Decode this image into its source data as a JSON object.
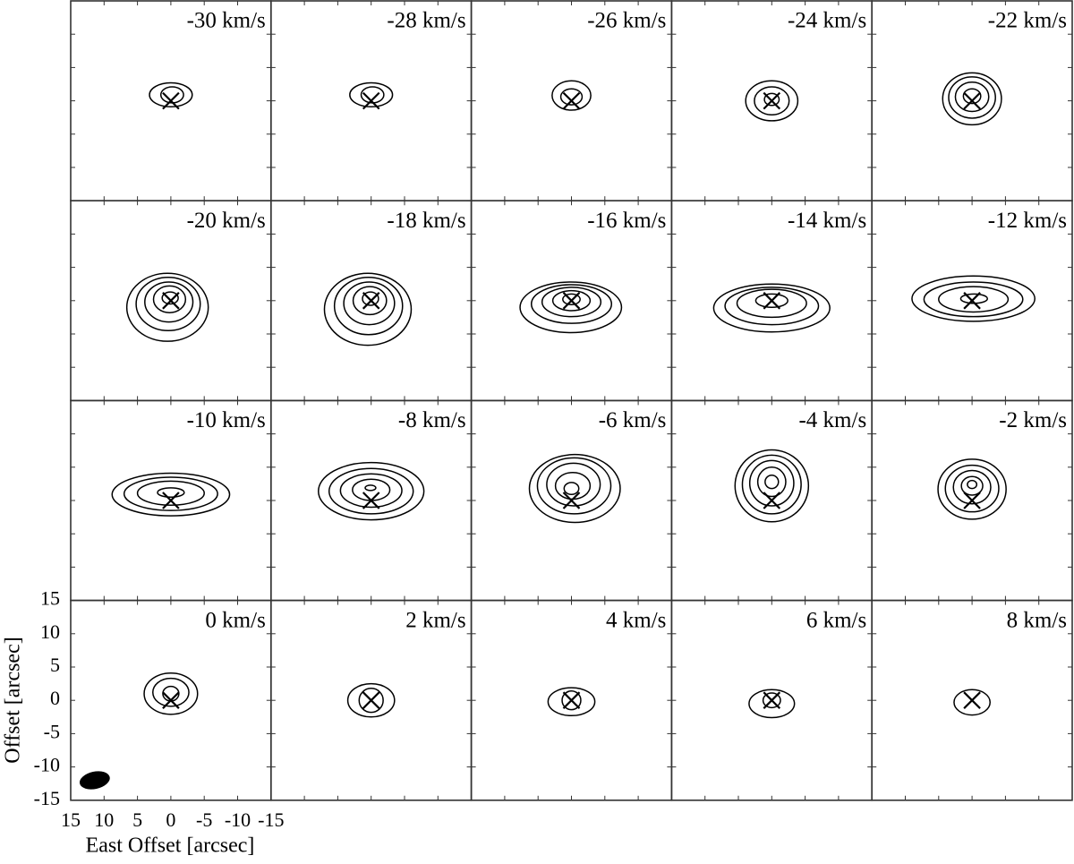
{
  "chart_data": {
    "type": "contour-channel-map",
    "xlabel": "East Offset [arcsec]",
    "ylabel": "Offset [arcsec]",
    "xlim": [
      15,
      -15
    ],
    "ylim": [
      -15,
      15
    ],
    "xticks": [
      15,
      10,
      5,
      0,
      -5,
      -10,
      -15
    ],
    "yticks": [
      15,
      10,
      5,
      0,
      -5,
      -10,
      -15
    ],
    "color": "#000000",
    "beam": {
      "x": 11.4,
      "y": -12.0,
      "major": 2.3,
      "minor": 1.3,
      "angle": -12
    },
    "panels": [
      {
        "label": "-30 km/s",
        "marker": [
          0,
          0
        ],
        "contours": [
          [
            0,
            0.9,
            3.2,
            1.8
          ],
          [
            -0.2,
            0.9,
            1.7,
            1.2
          ]
        ]
      },
      {
        "label": "-28 km/s",
        "marker": [
          0,
          0
        ],
        "contours": [
          [
            0,
            0.9,
            3.2,
            1.8
          ],
          [
            -0.2,
            0.9,
            1.7,
            1.2
          ]
        ]
      },
      {
        "label": "-26 km/s",
        "marker": [
          0,
          0
        ],
        "contours": [
          [
            0,
            0.8,
            2.9,
            2.2
          ],
          [
            0,
            0.6,
            1.6,
            1.2
          ]
        ]
      },
      {
        "label": "-24 km/s",
        "marker": [
          0,
          0
        ],
        "contours": [
          [
            0,
            0,
            3.9,
            3.0
          ],
          [
            0,
            0,
            2.6,
            2.1
          ],
          [
            0,
            0.2,
            1.1,
            0.9
          ]
        ]
      },
      {
        "label": "-22 km/s",
        "marker": [
          0,
          0
        ],
        "contours": [
          [
            0,
            0.3,
            4.4,
            3.9
          ],
          [
            0,
            0.5,
            3.5,
            3.1
          ],
          [
            0,
            0.6,
            2.5,
            2.2
          ],
          [
            0,
            0.7,
            1.3,
            1.1
          ]
        ]
      },
      {
        "label": "-20 km/s",
        "marker": [
          0,
          0
        ],
        "contours": [
          [
            0.5,
            -1.0,
            6.1,
            5.1
          ],
          [
            0.4,
            -0.5,
            4.8,
            4.0
          ],
          [
            0.3,
            -0.2,
            3.6,
            3.0
          ],
          [
            0.2,
            0.2,
            2.4,
            2.0
          ],
          [
            0.1,
            0.4,
            1.2,
            0.9
          ]
        ]
      },
      {
        "label": "-18 km/s",
        "marker": [
          0,
          0
        ],
        "contours": [
          [
            0.5,
            -1.3,
            6.5,
            5.4
          ],
          [
            0.4,
            -0.8,
            5.1,
            4.3
          ],
          [
            0.3,
            -0.4,
            3.8,
            3.2
          ],
          [
            0.2,
            0,
            2.5,
            2.1
          ],
          [
            0.1,
            0.3,
            1.2,
            1.0
          ]
        ]
      },
      {
        "label": "-16 km/s",
        "marker": [
          0,
          0
        ],
        "contours": [
          [
            0.1,
            -1.0,
            7.6,
            3.8
          ],
          [
            0,
            -0.5,
            6.0,
            2.9
          ],
          [
            0,
            -0.2,
            4.4,
            2.2
          ],
          [
            0,
            0,
            2.8,
            1.5
          ],
          [
            0,
            0.2,
            1.3,
            0.8
          ]
        ]
      },
      {
        "label": "-14 km/s",
        "marker": [
          0,
          0
        ],
        "contours": [
          [
            0,
            -1.1,
            8.7,
            3.6
          ],
          [
            0,
            -0.8,
            7.0,
            2.8
          ],
          [
            0,
            -0.4,
            5.2,
            2.1
          ],
          [
            0,
            0,
            2.4,
            1.0
          ]
        ]
      },
      {
        "label": "-12 km/s",
        "marker": [
          0,
          0
        ],
        "contours": [
          [
            -0.2,
            0.3,
            9.2,
            3.4
          ],
          [
            -0.2,
            0.2,
            7.4,
            2.6
          ],
          [
            -0.2,
            0.2,
            5.2,
            1.9
          ],
          [
            -0.3,
            0.3,
            2.0,
            0.7
          ]
        ]
      },
      {
        "label": "-10 km/s",
        "marker": [
          0,
          0
        ],
        "contours": [
          [
            0,
            0.9,
            8.8,
            3.2
          ],
          [
            0,
            1.0,
            7.0,
            2.5
          ],
          [
            0,
            1.1,
            5.0,
            1.8
          ],
          [
            0,
            1.2,
            2.0,
            0.7
          ]
        ]
      },
      {
        "label": "-8 km/s",
        "marker": [
          0,
          0
        ],
        "contours": [
          [
            0,
            1.4,
            7.9,
            4.3
          ],
          [
            0,
            1.4,
            6.3,
            3.4
          ],
          [
            0,
            1.5,
            4.6,
            2.5
          ],
          [
            0,
            1.6,
            2.8,
            1.6
          ],
          [
            0.1,
            1.9,
            0.8,
            0.4
          ]
        ]
      },
      {
        "label": "-6 km/s",
        "marker": [
          0,
          0
        ],
        "contours": [
          [
            -0.5,
            1.8,
            6.8,
            5.1
          ],
          [
            -0.4,
            2.2,
            5.5,
            4.2
          ],
          [
            -0.3,
            2.4,
            4.0,
            3.2
          ],
          [
            -0.2,
            2.2,
            2.6,
            2.0
          ],
          [
            0,
            1.8,
            1.1,
            0.9
          ]
        ]
      },
      {
        "label": "-4 km/s",
        "marker": [
          0,
          0
        ],
        "contours": [
          [
            0,
            2.2,
            5.5,
            5.4
          ],
          [
            0,
            2.4,
            4.4,
            4.4
          ],
          [
            0,
            2.6,
            3.3,
            3.4
          ],
          [
            0,
            2.8,
            2.1,
            2.2
          ],
          [
            0,
            2.8,
            1.0,
            1.0
          ]
        ]
      },
      {
        "label": "-2 km/s",
        "marker": [
          0,
          0
        ],
        "contours": [
          [
            0,
            1.7,
            5.1,
            4.5
          ],
          [
            0,
            1.8,
            4.0,
            3.5
          ],
          [
            0,
            2.0,
            2.8,
            2.5
          ],
          [
            0,
            2.2,
            1.6,
            1.4
          ],
          [
            0,
            2.4,
            0.7,
            0.6
          ]
        ]
      },
      {
        "label": "0 km/s",
        "marker": [
          0,
          0
        ],
        "contours": [
          [
            0,
            1.0,
            4.0,
            3.1
          ],
          [
            0,
            1.2,
            2.7,
            2.1
          ],
          [
            0,
            1.0,
            1.2,
            1.1
          ]
        ]
      },
      {
        "label": "2 km/s",
        "marker": [
          0,
          0
        ],
        "contours": [
          [
            0,
            0,
            3.5,
            2.5
          ],
          [
            0,
            0,
            1.8,
            1.8
          ]
        ]
      },
      {
        "label": "4 km/s",
        "marker": [
          0,
          0
        ],
        "contours": [
          [
            0,
            -0.2,
            3.5,
            2.1
          ],
          [
            0,
            0,
            1.4,
            1.4
          ]
        ]
      },
      {
        "label": "6 km/s",
        "marker": [
          0,
          0
        ],
        "contours": [
          [
            0,
            -0.5,
            3.4,
            2.1
          ],
          [
            0,
            0,
            1.3,
            1.1
          ]
        ]
      },
      {
        "label": "8 km/s",
        "marker": [
          0,
          0
        ],
        "contours": [
          [
            0,
            -0.3,
            2.7,
            1.9
          ]
        ]
      }
    ]
  }
}
